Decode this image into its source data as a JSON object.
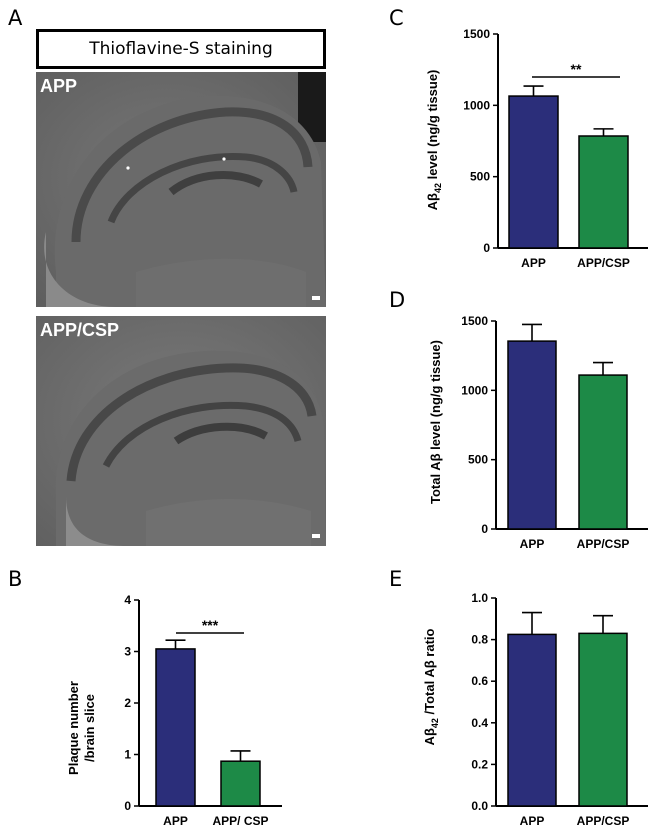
{
  "panel_letters": {
    "a": "A",
    "b": "B",
    "c": "C",
    "d": "D",
    "e": "E"
  },
  "banner": "Thioflavine-S staining",
  "micrographs": [
    {
      "label": "APP"
    },
    {
      "label": "APP/CSP"
    }
  ],
  "colors": {
    "app": "#2b2e7a",
    "app_csp": "#1d8a47"
  },
  "chart_data": [
    {
      "panel": "B",
      "type": "bar",
      "categories": [
        "APP",
        "APP/ CSP"
      ],
      "values": [
        3.05,
        0.87
      ],
      "errors": [
        0.17,
        0.2
      ],
      "ylim": [
        0,
        4
      ],
      "yticks": [
        "0",
        "1",
        "2",
        "3",
        "4"
      ],
      "ylabel_lines": [
        "Plaque number",
        "/brain slice"
      ],
      "significance": "***"
    },
    {
      "panel": "C",
      "type": "bar",
      "categories": [
        "APP",
        "APP/CSP"
      ],
      "values": [
        1065,
        785
      ],
      "errors": [
        70,
        50
      ],
      "ylim": [
        0,
        1500
      ],
      "yticks": [
        "0",
        "500",
        "1000",
        "1500"
      ],
      "ylabel": {
        "main": "Aβ",
        "sub": "42",
        "rest": " level (ng/g tissue)"
      },
      "significance": "**"
    },
    {
      "panel": "D",
      "type": "bar",
      "categories": [
        "APP",
        "APP/CSP"
      ],
      "values": [
        1355,
        1110
      ],
      "errors": [
        120,
        90
      ],
      "ylim": [
        0,
        1500
      ],
      "yticks": [
        "0",
        "500",
        "1000",
        "1500"
      ],
      "ylabel": "Total Aβ level (ng/g tissue)",
      "significance": ""
    },
    {
      "panel": "E",
      "type": "bar",
      "categories": [
        "APP",
        "APP/CSP"
      ],
      "values": [
        0.825,
        0.83
      ],
      "errors": [
        0.105,
        0.085
      ],
      "ylim": [
        0,
        1.0
      ],
      "yticks": [
        "0.0",
        "0.2",
        "0.4",
        "0.6",
        "0.8",
        "1.0"
      ],
      "ylabel": {
        "main": "Aβ",
        "sub": "42",
        "rest": " /Total Aβ ratio"
      },
      "significance": ""
    }
  ]
}
